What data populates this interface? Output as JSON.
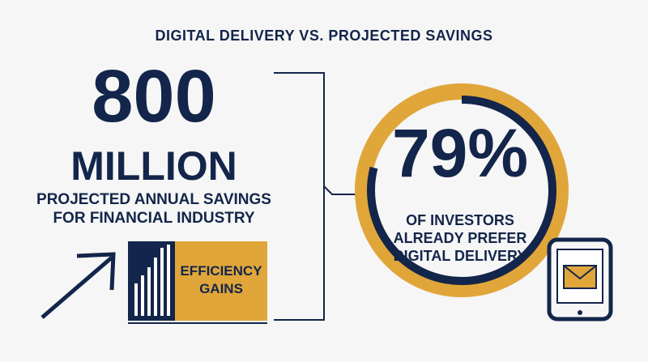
{
  "title": "DIGITAL DELIVERY VS. PROJECTED SAVINGS",
  "left": {
    "number": "800",
    "unit": "MILLION",
    "caption": [
      "PROJECTED ANNUAL SAVINGS",
      "FOR FINANCIAL INDUSTRY"
    ]
  },
  "badge": {
    "lines": [
      "EFFICIENCY",
      "GAINS"
    ]
  },
  "right": {
    "percent": {
      "value": 79,
      "label": "79%"
    },
    "caption": [
      "OF INVESTORS",
      "ALREADY PREFER",
      "DIGITAL DELIVERY"
    ]
  }
}
